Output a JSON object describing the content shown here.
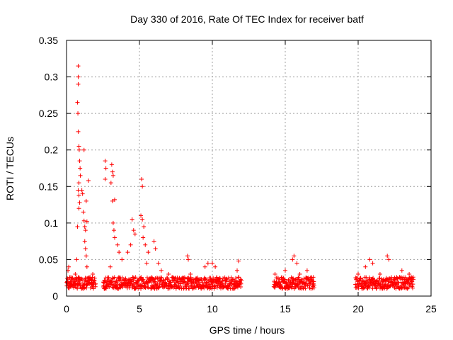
{
  "chart_data": {
    "type": "scatter",
    "title": "Day 330 of 2016, Rate Of TEC Index for receiver batf",
    "xlabel": "GPS time / hours",
    "ylabel": "ROTI / TECUs",
    "xlim": [
      0,
      25
    ],
    "ylim": [
      0,
      0.35
    ],
    "x_ticks": [
      0,
      5,
      10,
      15,
      20,
      25
    ],
    "x_tick_labels": [
      "0",
      "5",
      "10",
      "15",
      "20",
      "25"
    ],
    "y_ticks": [
      0,
      0.05,
      0.1,
      0.15,
      0.2,
      0.25,
      0.3,
      0.35
    ],
    "y_tick_labels": [
      "0",
      "0.05",
      "0.1",
      "0.15",
      "0.2",
      "0.25",
      "0.3",
      "0.35"
    ],
    "grid": true,
    "marker": "plus",
    "marker_color": "#ff0000",
    "data_windows_hours": [
      [
        0,
        2.0
      ],
      [
        2.5,
        12.0
      ],
      [
        14.2,
        17.0
      ],
      [
        19.8,
        23.8
      ]
    ],
    "points": [
      [
        0.05,
        0.02
      ],
      [
        0.1,
        0.035
      ],
      [
        0.15,
        0.04
      ],
      [
        0.2,
        0.015
      ],
      [
        0.3,
        0.02
      ],
      [
        0.4,
        0.025
      ],
      [
        0.5,
        0.018
      ],
      [
        0.6,
        0.03
      ],
      [
        0.7,
        0.05
      ],
      [
        0.75,
        0.095
      ],
      [
        0.8,
        0.315
      ],
      [
        0.8,
        0.3
      ],
      [
        0.8,
        0.29
      ],
      [
        0.75,
        0.265
      ],
      [
        0.78,
        0.25
      ],
      [
        0.8,
        0.225
      ],
      [
        0.85,
        0.205
      ],
      [
        0.87,
        0.2
      ],
      [
        0.9,
        0.185
      ],
      [
        0.93,
        0.175
      ],
      [
        0.95,
        0.165
      ],
      [
        0.85,
        0.155
      ],
      [
        0.8,
        0.145
      ],
      [
        0.85,
        0.138
      ],
      [
        0.9,
        0.128
      ],
      [
        0.85,
        0.12
      ],
      [
        1.05,
        0.145
      ],
      [
        1.1,
        0.14
      ],
      [
        1.15,
        0.115
      ],
      [
        1.2,
        0.103
      ],
      [
        1.25,
        0.095
      ],
      [
        1.3,
        0.09
      ],
      [
        1.2,
        0.2
      ],
      [
        1.35,
        0.13
      ],
      [
        1.4,
        0.102
      ],
      [
        1.5,
        0.158
      ],
      [
        1.25,
        0.075
      ],
      [
        1.3,
        0.065
      ],
      [
        1.35,
        0.055
      ],
      [
        1.4,
        0.04
      ],
      [
        1.6,
        0.025
      ],
      [
        1.8,
        0.03
      ],
      [
        2.65,
        0.185
      ],
      [
        2.7,
        0.175
      ],
      [
        2.65,
        0.16
      ],
      [
        2.6,
        0.01
      ],
      [
        2.7,
        0.025
      ],
      [
        3.0,
        0.04
      ],
      [
        3.1,
        0.18
      ],
      [
        3.15,
        0.17
      ],
      [
        3.2,
        0.165
      ],
      [
        3.05,
        0.155
      ],
      [
        3.15,
        0.13
      ],
      [
        3.3,
        0.132
      ],
      [
        3.2,
        0.1
      ],
      [
        3.25,
        0.09
      ],
      [
        3.3,
        0.08
      ],
      [
        3.5,
        0.07
      ],
      [
        3.6,
        0.06
      ],
      [
        3.8,
        0.05
      ],
      [
        4.5,
        0.105
      ],
      [
        4.6,
        0.09
      ],
      [
        4.7,
        0.085
      ],
      [
        4.4,
        0.07
      ],
      [
        4.2,
        0.06
      ],
      [
        5.15,
        0.16
      ],
      [
        5.2,
        0.15
      ],
      [
        5.1,
        0.11
      ],
      [
        5.2,
        0.105
      ],
      [
        5.3,
        0.095
      ],
      [
        5.25,
        0.08
      ],
      [
        5.4,
        0.07
      ],
      [
        5.6,
        0.06
      ],
      [
        5.5,
        0.045
      ],
      [
        6.0,
        0.075
      ],
      [
        6.1,
        0.065
      ],
      [
        6.3,
        0.045
      ],
      [
        6.5,
        0.035
      ],
      [
        7.0,
        0.03
      ],
      [
        7.5,
        0.025
      ],
      [
        8.0,
        0.02
      ],
      [
        8.3,
        0.055
      ],
      [
        8.35,
        0.05
      ],
      [
        8.5,
        0.03
      ],
      [
        9.0,
        0.025
      ],
      [
        9.5,
        0.04
      ],
      [
        9.7,
        0.045
      ],
      [
        10.0,
        0.045
      ],
      [
        10.2,
        0.04
      ],
      [
        10.5,
        0.02
      ],
      [
        11.0,
        0.02
      ],
      [
        11.5,
        0.02
      ],
      [
        11.8,
        0.048
      ],
      [
        11.7,
        0.035
      ],
      [
        14.3,
        0.03
      ],
      [
        14.5,
        0.025
      ],
      [
        15.0,
        0.035
      ],
      [
        15.5,
        0.05
      ],
      [
        15.6,
        0.055
      ],
      [
        15.8,
        0.045
      ],
      [
        16.0,
        0.03
      ],
      [
        16.5,
        0.035
      ],
      [
        16.9,
        0.02
      ],
      [
        20.0,
        0.03
      ],
      [
        20.5,
        0.04
      ],
      [
        20.8,
        0.05
      ],
      [
        21.0,
        0.045
      ],
      [
        21.5,
        0.03
      ],
      [
        22.0,
        0.055
      ],
      [
        22.1,
        0.05
      ],
      [
        22.5,
        0.025
      ],
      [
        23.0,
        0.035
      ],
      [
        23.5,
        0.03
      ],
      [
        23.7,
        0.02
      ]
    ],
    "band": {
      "base": 0.018,
      "spread": 0.016
    }
  }
}
